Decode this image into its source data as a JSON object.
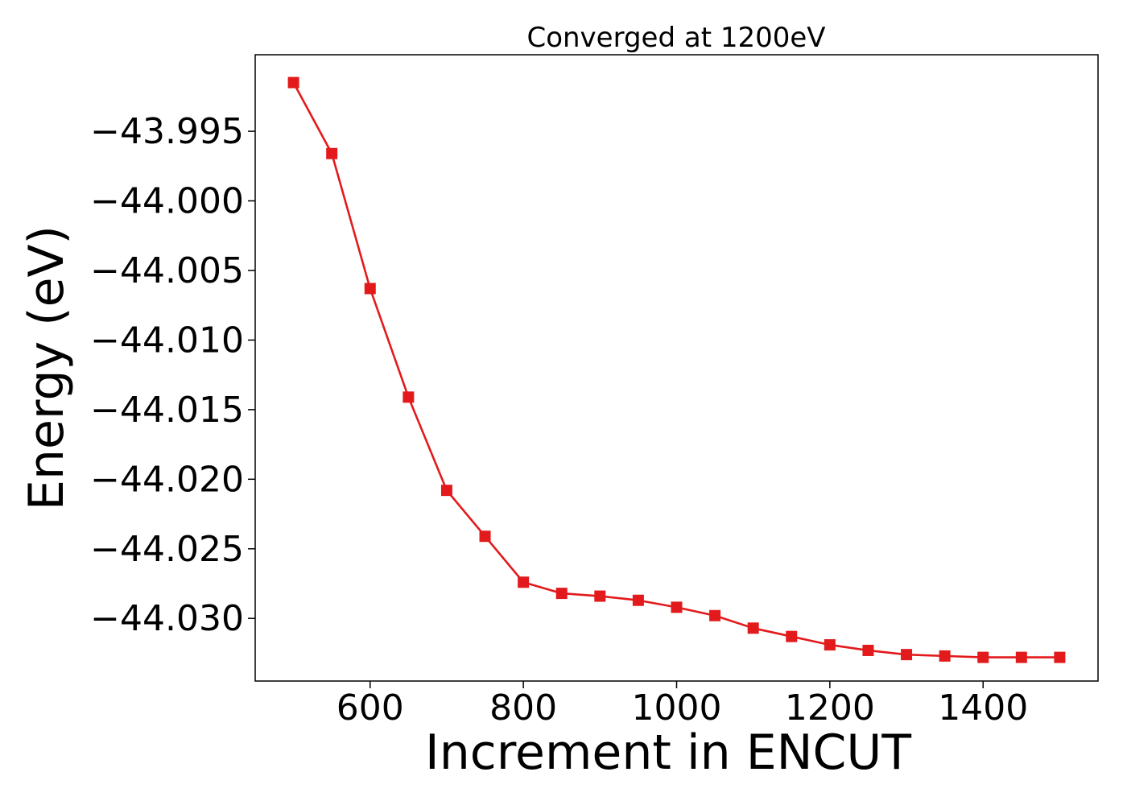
{
  "chart_data": {
    "type": "line",
    "title": "Converged at 1200eV",
    "xlabel": "Increment in ENCUT",
    "ylabel": "Energy (eV)",
    "xlim": [
      450,
      1550
    ],
    "ylim": [
      -44.0345,
      -43.9895
    ],
    "xticks": [
      600,
      800,
      1000,
      1200,
      1400
    ],
    "xtick_labels": [
      "600",
      "800",
      "1000",
      "1200",
      "1400"
    ],
    "yticks": [
      -43.995,
      -44.0,
      -44.005,
      -44.01,
      -44.015,
      -44.02,
      -44.025,
      -44.03
    ],
    "ytick_labels": [
      "−43.995",
      "−44.000",
      "−44.005",
      "−44.010",
      "−44.015",
      "−44.020",
      "−44.025",
      "−44.030"
    ],
    "grid": false,
    "legend": "none",
    "marker": "square",
    "line_color": "#e31a1c",
    "series": [
      {
        "x": [
          500,
          550,
          600,
          650,
          700,
          750,
          800,
          850,
          900,
          950,
          1000,
          1050,
          1100,
          1150,
          1200,
          1250,
          1300,
          1350,
          1400,
          1450,
          1500
        ],
        "values": [
          -43.9915,
          -43.9966,
          -44.0063,
          -44.0141,
          -44.0208,
          -44.0241,
          -44.0274,
          -44.0282,
          -44.0284,
          -44.0287,
          -44.0292,
          -44.0298,
          -44.0307,
          -44.0313,
          -44.0319,
          -44.0323,
          -44.0326,
          -44.0327,
          -44.0328,
          -44.0328,
          -44.0328
        ]
      }
    ]
  }
}
